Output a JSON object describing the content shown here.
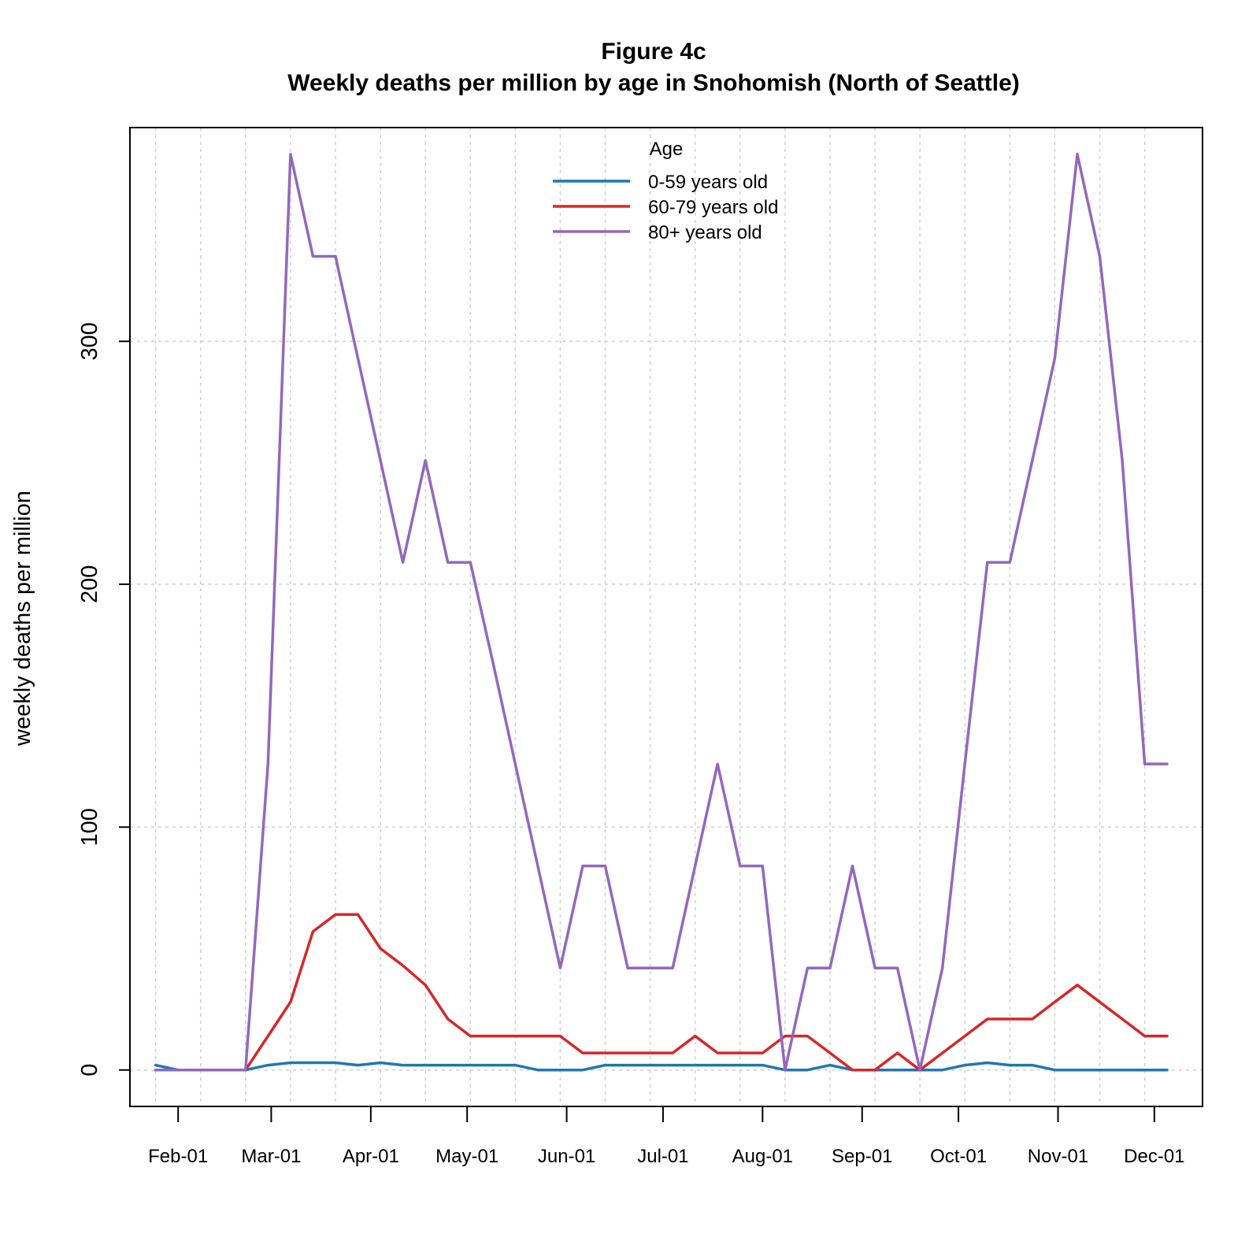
{
  "chart_data": {
    "type": "line",
    "title": "Figure 4c",
    "subtitle": "Weekly deaths per million by age in Snohomish (North of Seattle)",
    "xlabel": "",
    "ylabel": "weekly deaths per million",
    "y_ticks": [
      0,
      100,
      200,
      300
    ],
    "ylim": [
      -15,
      388
    ],
    "x_tick_labels": [
      "Feb-01",
      "Mar-01",
      "Apr-01",
      "May-01",
      "Jun-01",
      "Jul-01",
      "Aug-01",
      "Sep-01",
      "Oct-01",
      "Nov-01",
      "Dec-01"
    ],
    "x_tick_dates": [
      "2020-02-01",
      "2020-03-01",
      "2020-04-01",
      "2020-05-01",
      "2020-06-01",
      "2020-07-01",
      "2020-08-01",
      "2020-09-01",
      "2020-10-01",
      "2020-11-01",
      "2020-12-01"
    ],
    "xlim": [
      "2020-01-17",
      "2020-12-16"
    ],
    "grid": true,
    "legend": {
      "title": "Age",
      "placement": "top-center"
    },
    "dates": [
      "2020-01-25",
      "2020-02-01",
      "2020-02-08",
      "2020-02-15",
      "2020-02-22",
      "2020-02-29",
      "2020-03-07",
      "2020-03-14",
      "2020-03-21",
      "2020-03-28",
      "2020-04-04",
      "2020-04-11",
      "2020-04-18",
      "2020-04-25",
      "2020-05-02",
      "2020-05-09",
      "2020-05-16",
      "2020-05-23",
      "2020-05-30",
      "2020-06-06",
      "2020-06-13",
      "2020-06-20",
      "2020-06-27",
      "2020-07-04",
      "2020-07-11",
      "2020-07-18",
      "2020-07-25",
      "2020-08-01",
      "2020-08-08",
      "2020-08-15",
      "2020-08-22",
      "2020-08-29",
      "2020-09-05",
      "2020-09-12",
      "2020-09-19",
      "2020-09-26",
      "2020-10-03",
      "2020-10-10",
      "2020-10-17",
      "2020-10-24",
      "2020-10-31",
      "2020-11-07",
      "2020-11-14",
      "2020-11-21",
      "2020-11-28",
      "2020-12-05"
    ],
    "series": [
      {
        "name": "0-59 years old",
        "color": "#1f77b4",
        "values": [
          2,
          0,
          0,
          0,
          0,
          2,
          3,
          3,
          3,
          2,
          3,
          2,
          2,
          2,
          2,
          2,
          2,
          0,
          0,
          0,
          2,
          2,
          2,
          2,
          2,
          2,
          2,
          2,
          0,
          0,
          2,
          0,
          0,
          0,
          0,
          0,
          2,
          3,
          2,
          2,
          0,
          0,
          0,
          0,
          0,
          0
        ]
      },
      {
        "name": "60-79 years old",
        "color": "#d62728",
        "values": [
          0,
          0,
          0,
          0,
          0,
          14,
          28,
          57,
          64,
          64,
          50,
          43,
          35,
          21,
          14,
          14,
          14,
          14,
          14,
          7,
          7,
          7,
          7,
          7,
          14,
          7,
          7,
          7,
          14,
          14,
          7,
          0,
          0,
          7,
          0,
          7,
          14,
          21,
          21,
          21,
          28,
          35,
          28,
          21,
          14,
          14
        ]
      },
      {
        "name": "80+ years old",
        "color": "#9467bd",
        "values": [
          0,
          0,
          0,
          0,
          0,
          126,
          377,
          335,
          335,
          293,
          251,
          209,
          251,
          209,
          209,
          168,
          126,
          84,
          42,
          84,
          84,
          42,
          42,
          42,
          84,
          126,
          84,
          84,
          0,
          42,
          42,
          84,
          42,
          42,
          0,
          42,
          126,
          209,
          209,
          251,
          293,
          377,
          335,
          251,
          126,
          126
        ]
      }
    ]
  }
}
